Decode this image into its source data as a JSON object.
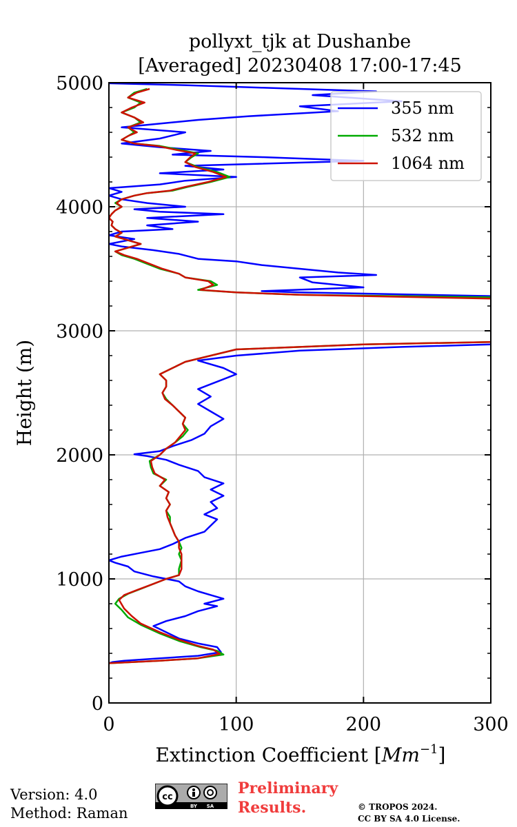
{
  "title_lines": [
    "pollyxt_tjk at Dushanbe",
    "[Averaged] 20230408 17:00-17:45"
  ],
  "footer": {
    "version": "Version: 4.0",
    "method": "Method: Raman",
    "preliminary_line1": "Preliminary",
    "preliminary_line2": "Results.",
    "copyright_line1": "© TROPOS 2024.",
    "copyright_line2": "CC BY SA 4.0 License.",
    "badge_cc": "cc",
    "badge_by": "BY",
    "badge_sa": "SA"
  },
  "chart_data": {
    "type": "line",
    "title": "pollyxt_tjk at Dushanbe [Averaged] 20230408 17:00-17:45",
    "xlabel": "Extinction Coefficient [Mm⁻¹]",
    "xlabel_main": "Extinction Coefficient [",
    "xlabel_unit": "Mm",
    "xlabel_exp": "−1",
    "xlabel_end": "]",
    "ylabel": "Height (m)",
    "xlim": [
      0,
      300
    ],
    "ylim": [
      0,
      5000
    ],
    "xticks": [
      0,
      100,
      200,
      300
    ],
    "yticks": [
      0,
      1000,
      2000,
      3000,
      4000,
      5000
    ],
    "grid": true,
    "legend_position": "top-right",
    "series": [
      {
        "name": "355 nm",
        "color": "#0000ff",
        "points": [
          [
            0,
            320
          ],
          [
            3,
            330
          ],
          [
            12,
            340
          ],
          [
            40,
            360
          ],
          [
            70,
            380
          ],
          [
            88,
            410
          ],
          [
            85,
            450
          ],
          [
            70,
            480
          ],
          [
            55,
            520
          ],
          [
            45,
            570
          ],
          [
            35,
            620
          ],
          [
            45,
            660
          ],
          [
            60,
            700
          ],
          [
            70,
            740
          ],
          [
            85,
            780
          ],
          [
            75,
            800
          ],
          [
            90,
            840
          ],
          [
            80,
            870
          ],
          [
            70,
            900
          ],
          [
            60,
            940
          ],
          [
            55,
            980
          ],
          [
            35,
            1020
          ],
          [
            20,
            1060
          ],
          [
            15,
            1100
          ],
          [
            5,
            1130
          ],
          [
            0,
            1150
          ],
          [
            10,
            1180
          ],
          [
            25,
            1210
          ],
          [
            40,
            1240
          ],
          [
            50,
            1280
          ],
          [
            60,
            1330
          ],
          [
            75,
            1380
          ],
          [
            80,
            1430
          ],
          [
            85,
            1480
          ],
          [
            75,
            1520
          ],
          [
            85,
            1570
          ],
          [
            80,
            1620
          ],
          [
            90,
            1670
          ],
          [
            80,
            1720
          ],
          [
            90,
            1770
          ],
          [
            75,
            1820
          ],
          [
            70,
            1870
          ],
          [
            55,
            1920
          ],
          [
            45,
            1960
          ],
          [
            30,
            1990
          ],
          [
            20,
            2005
          ],
          [
            40,
            2030
          ],
          [
            50,
            2070
          ],
          [
            65,
            2120
          ],
          [
            75,
            2170
          ],
          [
            80,
            2230
          ],
          [
            90,
            2290
          ],
          [
            80,
            2350
          ],
          [
            70,
            2410
          ],
          [
            80,
            2470
          ],
          [
            70,
            2530
          ],
          [
            85,
            2590
          ],
          [
            100,
            2650
          ],
          [
            90,
            2700
          ],
          [
            70,
            2760
          ],
          [
            100,
            2800
          ],
          [
            150,
            2840
          ],
          [
            230,
            2870
          ],
          [
            300,
            2890
          ]
        ]
      },
      {
        "name": "532 nm",
        "color": "#00aa00",
        "points": [
          [
            0,
            320
          ],
          [
            40,
            340
          ],
          [
            70,
            360
          ],
          [
            90,
            390
          ],
          [
            85,
            420
          ],
          [
            72,
            450
          ],
          [
            55,
            500
          ],
          [
            40,
            560
          ],
          [
            25,
            630
          ],
          [
            15,
            690
          ],
          [
            10,
            750
          ],
          [
            5,
            800
          ],
          [
            8,
            840
          ],
          [
            15,
            880
          ],
          [
            25,
            920
          ],
          [
            35,
            960
          ],
          [
            45,
            1000
          ],
          [
            55,
            1030
          ],
          [
            55,
            1080
          ],
          [
            57,
            1150
          ],
          [
            55,
            1200
          ],
          [
            57,
            1250
          ],
          [
            55,
            1300
          ],
          [
            52,
            1350
          ],
          [
            50,
            1400
          ],
          [
            48,
            1450
          ],
          [
            48,
            1500
          ],
          [
            45,
            1550
          ],
          [
            48,
            1600
          ],
          [
            45,
            1650
          ],
          [
            47,
            1700
          ],
          [
            40,
            1750
          ],
          [
            45,
            1800
          ],
          [
            35,
            1850
          ],
          [
            33,
            1900
          ],
          [
            32,
            1950
          ],
          [
            40,
            2000
          ],
          [
            45,
            2050
          ],
          [
            52,
            2100
          ],
          [
            58,
            2150
          ],
          [
            62,
            2200
          ],
          [
            58,
            2250
          ],
          [
            60,
            2300
          ],
          [
            55,
            2350
          ],
          [
            50,
            2400
          ],
          [
            45,
            2450
          ],
          [
            42,
            2500
          ],
          [
            45,
            2550
          ],
          [
            45,
            2600
          ],
          [
            40,
            2650
          ],
          [
            50,
            2700
          ],
          [
            60,
            2750
          ],
          [
            100,
            2850
          ],
          [
            200,
            2890
          ],
          [
            300,
            2910
          ]
        ]
      },
      {
        "name": "1064 nm",
        "color": "#cc1100",
        "points": [
          [
            0,
            320
          ],
          [
            40,
            340
          ],
          [
            70,
            360
          ],
          [
            87,
            395
          ],
          [
            82,
            430
          ],
          [
            70,
            460
          ],
          [
            55,
            510
          ],
          [
            40,
            570
          ],
          [
            25,
            640
          ],
          [
            18,
            700
          ],
          [
            12,
            760
          ],
          [
            8,
            830
          ],
          [
            12,
            870
          ],
          [
            22,
            910
          ],
          [
            35,
            960
          ],
          [
            45,
            1000
          ],
          [
            55,
            1030
          ],
          [
            57,
            1080
          ],
          [
            57,
            1150
          ],
          [
            57,
            1200
          ],
          [
            55,
            1250
          ],
          [
            55,
            1300
          ],
          [
            52,
            1350
          ],
          [
            50,
            1400
          ],
          [
            48,
            1450
          ],
          [
            46,
            1500
          ],
          [
            45,
            1550
          ],
          [
            48,
            1600
          ],
          [
            45,
            1650
          ],
          [
            47,
            1700
          ],
          [
            40,
            1750
          ],
          [
            44,
            1800
          ],
          [
            36,
            1850
          ],
          [
            34,
            1900
          ],
          [
            33,
            1950
          ],
          [
            40,
            2000
          ],
          [
            45,
            2050
          ],
          [
            52,
            2100
          ],
          [
            56,
            2150
          ],
          [
            60,
            2200
          ],
          [
            58,
            2250
          ],
          [
            60,
            2300
          ],
          [
            55,
            2350
          ],
          [
            50,
            2400
          ],
          [
            44,
            2450
          ],
          [
            42,
            2500
          ],
          [
            45,
            2550
          ],
          [
            45,
            2600
          ],
          [
            40,
            2650
          ],
          [
            50,
            2700
          ],
          [
            60,
            2750
          ],
          [
            100,
            2850
          ],
          [
            200,
            2890
          ],
          [
            300,
            2910
          ]
        ]
      }
    ],
    "upper_points": {
      "355 nm": [
        [
          300,
          3280
        ],
        [
          200,
          3300
        ],
        [
          150,
          3310
        ],
        [
          120,
          3320
        ],
        [
          200,
          3350
        ],
        [
          160,
          3390
        ],
        [
          150,
          3430
        ],
        [
          210,
          3450
        ],
        [
          180,
          3470
        ],
        [
          150,
          3500
        ],
        [
          120,
          3530
        ],
        [
          100,
          3560
        ],
        [
          70,
          3580
        ],
        [
          55,
          3620
        ],
        [
          35,
          3650
        ],
        [
          10,
          3680
        ],
        [
          0,
          3700
        ],
        [
          20,
          3740
        ],
        [
          0,
          3770
        ],
        [
          10,
          3800
        ],
        [
          50,
          3820
        ],
        [
          30,
          3850
        ],
        [
          70,
          3880
        ],
        [
          30,
          3910
        ],
        [
          90,
          3940
        ],
        [
          40,
          3960
        ],
        [
          20,
          3980
        ],
        [
          60,
          4000
        ],
        [
          30,
          4030
        ],
        [
          10,
          4060
        ],
        [
          0,
          4090
        ],
        [
          10,
          4120
        ],
        [
          0,
          4150
        ],
        [
          40,
          4180
        ],
        [
          60,
          4210
        ],
        [
          100,
          4240
        ],
        [
          40,
          4270
        ],
        [
          90,
          4300
        ],
        [
          60,
          4330
        ],
        [
          200,
          4370
        ],
        [
          120,
          4400
        ],
        [
          50,
          4420
        ],
        [
          80,
          4450
        ],
        [
          40,
          4480
        ],
        [
          10,
          4510
        ],
        [
          40,
          4550
        ],
        [
          60,
          4600
        ],
        [
          10,
          4640
        ],
        [
          40,
          4670
        ],
        [
          70,
          4700
        ],
        [
          110,
          4730
        ],
        [
          180,
          4770
        ],
        [
          150,
          4810
        ],
        [
          230,
          4850
        ],
        [
          160,
          4900
        ],
        [
          210,
          4930
        ],
        [
          120,
          4960
        ],
        [
          60,
          4980
        ],
        [
          0,
          4995
        ]
      ],
      "532 nm": [
        [
          300,
          3270
        ],
        [
          150,
          3290
        ],
        [
          100,
          3310
        ],
        [
          70,
          3330
        ],
        [
          85,
          3370
        ],
        [
          80,
          3400
        ],
        [
          60,
          3430
        ],
        [
          55,
          3460
        ],
        [
          40,
          3500
        ],
        [
          30,
          3540
        ],
        [
          20,
          3580
        ],
        [
          10,
          3610
        ],
        [
          5,
          3640
        ],
        [
          15,
          3670
        ],
        [
          25,
          3700
        ],
        [
          15,
          3730
        ],
        [
          5,
          3760
        ],
        [
          10,
          3790
        ],
        [
          5,
          3820
        ],
        [
          2,
          3850
        ],
        [
          3,
          3880
        ],
        [
          0,
          3910
        ],
        [
          2,
          3940
        ],
        [
          5,
          3970
        ],
        [
          10,
          4000
        ],
        [
          5,
          4030
        ],
        [
          10,
          4060
        ],
        [
          20,
          4090
        ],
        [
          30,
          4110
        ],
        [
          50,
          4130
        ],
        [
          62,
          4160
        ],
        [
          80,
          4200
        ],
        [
          95,
          4240
        ],
        [
          85,
          4280
        ],
        [
          70,
          4320
        ],
        [
          60,
          4360
        ],
        [
          65,
          4400
        ],
        [
          70,
          4430
        ],
        [
          55,
          4460
        ],
        [
          40,
          4490
        ],
        [
          20,
          4510
        ],
        [
          10,
          4540
        ],
        [
          15,
          4570
        ],
        [
          20,
          4600
        ],
        [
          15,
          4640
        ],
        [
          25,
          4680
        ],
        [
          20,
          4720
        ],
        [
          10,
          4760
        ],
        [
          20,
          4800
        ],
        [
          25,
          4840
        ],
        [
          15,
          4880
        ],
        [
          20,
          4920
        ],
        [
          30,
          4950
        ]
      ],
      "1064 nm": [
        [
          300,
          3260
        ],
        [
          150,
          3290
        ],
        [
          100,
          3310
        ],
        [
          72,
          3330
        ],
        [
          82,
          3370
        ],
        [
          78,
          3400
        ],
        [
          60,
          3430
        ],
        [
          55,
          3460
        ],
        [
          42,
          3500
        ],
        [
          32,
          3540
        ],
        [
          22,
          3580
        ],
        [
          12,
          3610
        ],
        [
          5,
          3640
        ],
        [
          15,
          3670
        ],
        [
          25,
          3700
        ],
        [
          15,
          3730
        ],
        [
          5,
          3760
        ],
        [
          10,
          3790
        ],
        [
          5,
          3820
        ],
        [
          2,
          3850
        ],
        [
          3,
          3880
        ],
        [
          0,
          3910
        ],
        [
          2,
          3940
        ],
        [
          5,
          3970
        ],
        [
          10,
          4000
        ],
        [
          6,
          4030
        ],
        [
          10,
          4060
        ],
        [
          20,
          4090
        ],
        [
          30,
          4110
        ],
        [
          48,
          4130
        ],
        [
          60,
          4160
        ],
        [
          78,
          4200
        ],
        [
          92,
          4240
        ],
        [
          82,
          4280
        ],
        [
          68,
          4320
        ],
        [
          60,
          4360
        ],
        [
          64,
          4400
        ],
        [
          68,
          4430
        ],
        [
          52,
          4460
        ],
        [
          38,
          4490
        ],
        [
          20,
          4510
        ],
        [
          10,
          4540
        ],
        [
          15,
          4570
        ],
        [
          22,
          4600
        ],
        [
          15,
          4640
        ],
        [
          27,
          4680
        ],
        [
          20,
          4720
        ],
        [
          10,
          4760
        ],
        [
          18,
          4800
        ],
        [
          28,
          4840
        ],
        [
          15,
          4880
        ],
        [
          22,
          4920
        ],
        [
          32,
          4950
        ]
      ]
    }
  }
}
